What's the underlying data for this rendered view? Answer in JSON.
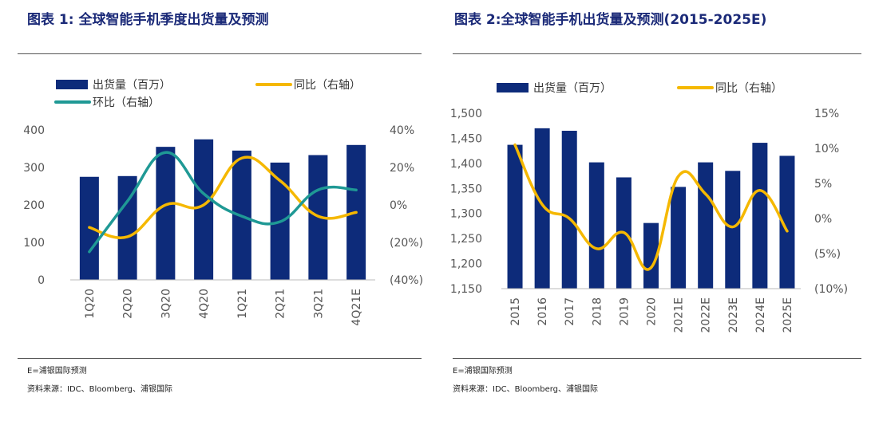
{
  "colors": {
    "bar": "#0d2b7a",
    "yoy": "#f5b800",
    "qoq": "#1f9995",
    "title": "#1b2a78"
  },
  "panel1": {
    "title": "图表 1:  全球智能手机季度出货量及预测",
    "notes": [
      "E=浦银国际预测",
      "资料来源：IDC、Bloomberg、浦银国际"
    ]
  },
  "panel2": {
    "title": "图表 2:全球智能手机出货量及预测(2015-2025E)",
    "notes": [
      "E=浦银国际预测",
      "资料来源：IDC、Bloomberg、浦银国际"
    ]
  },
  "chart_data": [
    {
      "type": "bar",
      "categories": [
        "1Q20",
        "2Q20",
        "3Q20",
        "4Q20",
        "1Q21",
        "2Q21",
        "3Q21",
        "4Q21E"
      ],
      "series": [
        {
          "name": "出货量（百万）",
          "type": "bar",
          "axis": "left",
          "values": [
            275,
            277,
            355,
            375,
            345,
            313,
            333,
            360
          ]
        },
        {
          "name": "同比（右轴）",
          "type": "line",
          "axis": "right",
          "unit": "%",
          "values": [
            -12,
            -17,
            0,
            0,
            25,
            13,
            -6,
            -4
          ]
        },
        {
          "name": "环比（右轴）",
          "type": "line",
          "axis": "right",
          "unit": "%",
          "values": [
            -25,
            2,
            28,
            6,
            -6,
            -9,
            8,
            8
          ]
        }
      ],
      "left_axis": {
        "ylim": [
          0,
          400
        ],
        "ticks": [
          "0",
          "100",
          "200",
          "300",
          "400"
        ]
      },
      "right_axis": {
        "ylim": [
          -40,
          40
        ],
        "ticks": [
          "(40%)",
          "(20%)",
          "0%",
          "20%",
          "40%"
        ]
      },
      "legend": "top-left",
      "grid": false
    },
    {
      "type": "bar",
      "categories": [
        "2015",
        "2016",
        "2017",
        "2018",
        "2019",
        "2020",
        "2021E",
        "2022E",
        "2023E",
        "2024E",
        "2025E"
      ],
      "series": [
        {
          "name": "出货量（百万）",
          "type": "bar",
          "axis": "left",
          "values": [
            1437,
            1470,
            1465,
            1402,
            1372,
            1281,
            1353,
            1402,
            1385,
            1441,
            1415
          ]
        },
        {
          "name": "同比（右轴）",
          "type": "line",
          "axis": "right",
          "unit": "%",
          "values": [
            10.5,
            2,
            0,
            -4.3,
            -2,
            -7,
            6,
            3.5,
            -1.2,
            4,
            -1.8
          ]
        }
      ],
      "left_axis": {
        "ylim": [
          1150,
          1500
        ],
        "ticks": [
          "1,150",
          "1,200",
          "1,250",
          "1,300",
          "1,350",
          "1,400",
          "1,450",
          "1,500"
        ]
      },
      "right_axis": {
        "ylim": [
          -10,
          15
        ],
        "ticks": [
          "(10%)",
          "(5%)",
          "0%",
          "5%",
          "10%",
          "15%"
        ]
      },
      "legend": "top-left",
      "grid": false
    }
  ]
}
